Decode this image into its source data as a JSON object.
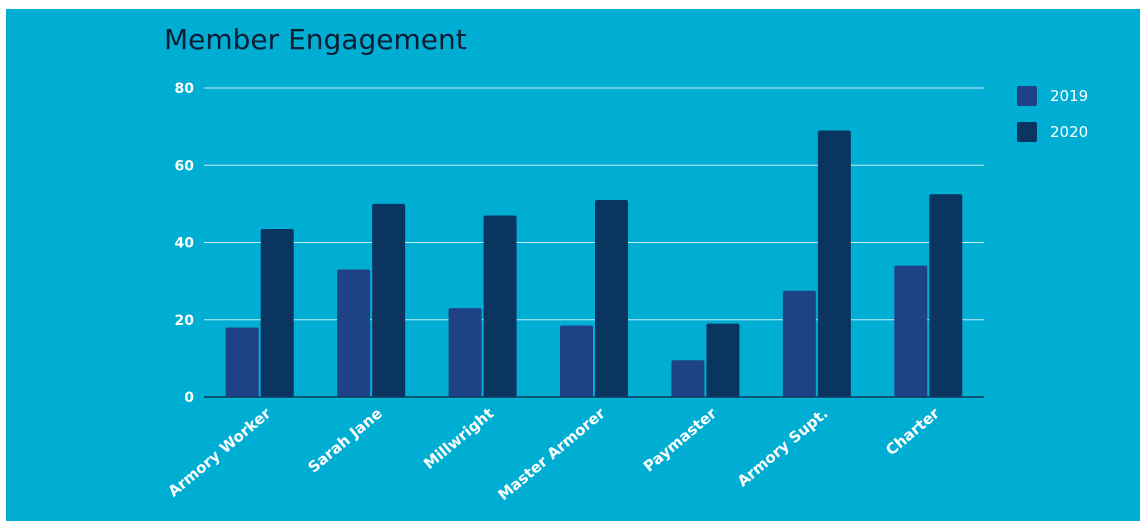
{
  "chart_data": {
    "type": "bar",
    "title": "Member Engagement",
    "categories": [
      "Armory Worker",
      "Sarah Jane",
      "Millwright",
      "Master Armorer",
      "Paymaster",
      "Armory Supt.",
      "Charter"
    ],
    "series": [
      {
        "name": "2019",
        "values": [
          18,
          33,
          23,
          18.5,
          9.5,
          27.5,
          34
        ],
        "color": "#1f4287"
      },
      {
        "name": "2020",
        "values": [
          43.5,
          50,
          47,
          51,
          19,
          69,
          52.5
        ],
        "color": "#0a3560"
      }
    ],
    "yticks": [
      0,
      20,
      40,
      60,
      80
    ],
    "ylim": [
      0,
      80
    ],
    "grid": true,
    "legend_position": "top-right",
    "xlabel": "",
    "ylabel": ""
  },
  "colors": {
    "background": "#00aed3",
    "gridline": "#c6ecf5",
    "text": "#ffffff",
    "title": "#0e1d33"
  }
}
